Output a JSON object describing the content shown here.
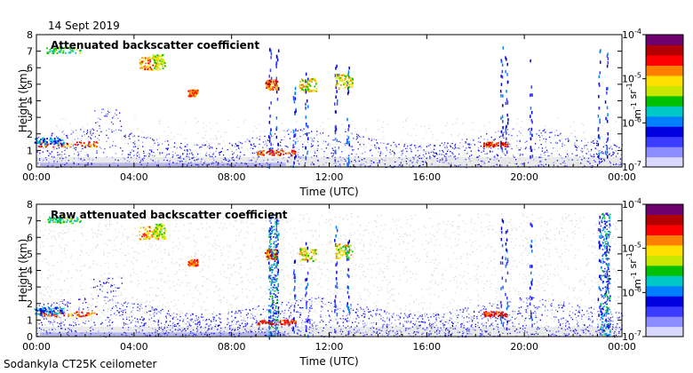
{
  "date": "14 Sept 2019",
  "footer": "Sodankyla CT25K ceilometer",
  "colors": {
    "background_echo": "#d9d9d9",
    "colormap": [
      "#d8d8ff",
      "#8c8cff",
      "#3b3bff",
      "#0000e0",
      "#0080ff",
      "#00c8c8",
      "#00c000",
      "#c8e600",
      "#ffe000",
      "#ff8000",
      "#ff0000",
      "#b40000",
      "#6e006e"
    ]
  },
  "chart_data": [
    {
      "type": "heatmap",
      "title": "Attenuated backscatter coefficient",
      "xlabel": "Time (UTC)",
      "ylabel": "Height (km)",
      "x_ticks": [
        "00:00",
        "04:00",
        "08:00",
        "12:00",
        "16:00",
        "20:00",
        "00:00"
      ],
      "xlim_hours": [
        0,
        24
      ],
      "y_ticks": [
        "0",
        "1",
        "2",
        "3",
        "4",
        "5",
        "6",
        "7",
        "8"
      ],
      "ylim": [
        0,
        8
      ],
      "colorbar": {
        "label": "m-1 sr-1",
        "ticks": [
          "10-7",
          "10-6",
          "10-5",
          "10-4"
        ],
        "range": [
          1e-07,
          0.0001
        ],
        "scale": "log"
      }
    },
    {
      "type": "heatmap",
      "title": "Raw attenuated backscatter coefficient",
      "xlabel": "Time (UTC)",
      "ylabel": "Height (km)",
      "x_ticks": [
        "00:00",
        "04:00",
        "08:00",
        "12:00",
        "16:00",
        "20:00",
        "00:00"
      ],
      "xlim_hours": [
        0,
        24
      ],
      "y_ticks": [
        "0",
        "1",
        "2",
        "3",
        "4",
        "5",
        "6",
        "7",
        "8"
      ],
      "ylim": [
        0,
        8
      ],
      "colorbar": {
        "label": "m-1 sr-1",
        "ticks": [
          "10-7",
          "10-6",
          "10-5",
          "10-4"
        ],
        "range": [
          1e-07,
          0.0001
        ],
        "scale": "log"
      }
    }
  ]
}
